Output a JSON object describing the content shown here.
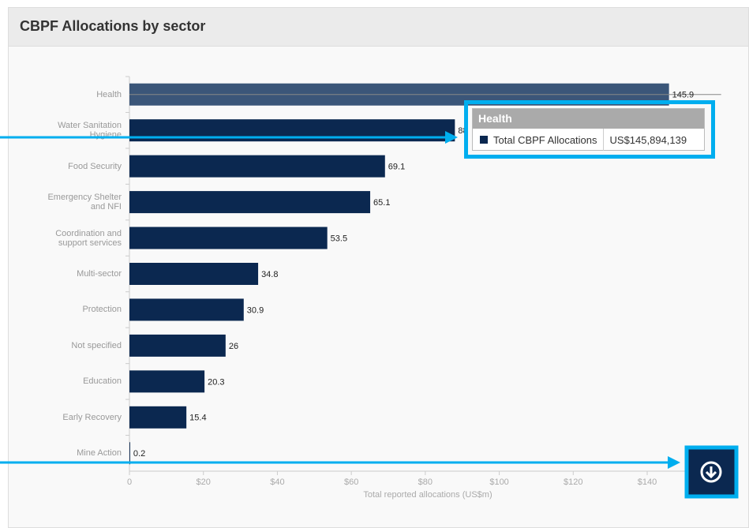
{
  "chart_data": {
    "type": "hbar",
    "title": "CBPF Allocations by sector",
    "categories": [
      "Health",
      "Water Sanitation Hygiene",
      "Food Security",
      "Emergency Shelter and NFI",
      "Coordination and support services",
      "Multi-sector",
      "Protection",
      "Not specified",
      "Education",
      "Early Recovery",
      "Mine Action"
    ],
    "values": [
      145.9,
      88,
      69.1,
      65.1,
      53.5,
      34.8,
      30.9,
      26,
      20.3,
      15.4,
      0.2
    ],
    "color": "#0b2850",
    "highlight_color": "#3b5679",
    "highlighted": 0,
    "xlim": [
      0,
      160
    ],
    "xticks": [
      0,
      {
        "value": 20,
        "label": "$20"
      },
      {
        "value": 40,
        "label": "$40"
      },
      {
        "value": 60,
        "label": "$60"
      },
      {
        "value": 80,
        "label": "$80"
      },
      {
        "value": 100,
        "label": "$100"
      },
      {
        "value": 120,
        "label": "$120"
      },
      {
        "value": 140,
        "label": "$140"
      }
    ],
    "xlabel": "Total reported allocations (US$m)"
  },
  "tooltip": {
    "title": "Health",
    "series_name": "Total CBPF Allocations",
    "value": "US$145,894,139"
  }
}
